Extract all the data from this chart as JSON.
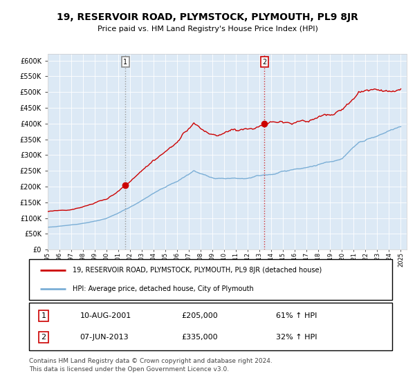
{
  "title": "19, RESERVOIR ROAD, PLYMSTOCK, PLYMOUTH, PL9 8JR",
  "subtitle": "Price paid vs. HM Land Registry's House Price Index (HPI)",
  "legend_line1": "19, RESERVOIR ROAD, PLYMSTOCK, PLYMOUTH, PL9 8JR (detached house)",
  "legend_line2": "HPI: Average price, detached house, City of Plymouth",
  "annotation1_date": "10-AUG-2001",
  "annotation1_price": "£205,000",
  "annotation1_hpi": "61% ↑ HPI",
  "annotation2_date": "07-JUN-2013",
  "annotation2_price": "£335,000",
  "annotation2_hpi": "32% ↑ HPI",
  "footer": "Contains HM Land Registry data © Crown copyright and database right 2024.\nThis data is licensed under the Open Government Licence v3.0.",
  "red_color": "#cc0000",
  "blue_color": "#7aaed6",
  "bg_color": "#dce9f5",
  "grid_color": "#ffffff",
  "border_color": "#aaaaaa"
}
